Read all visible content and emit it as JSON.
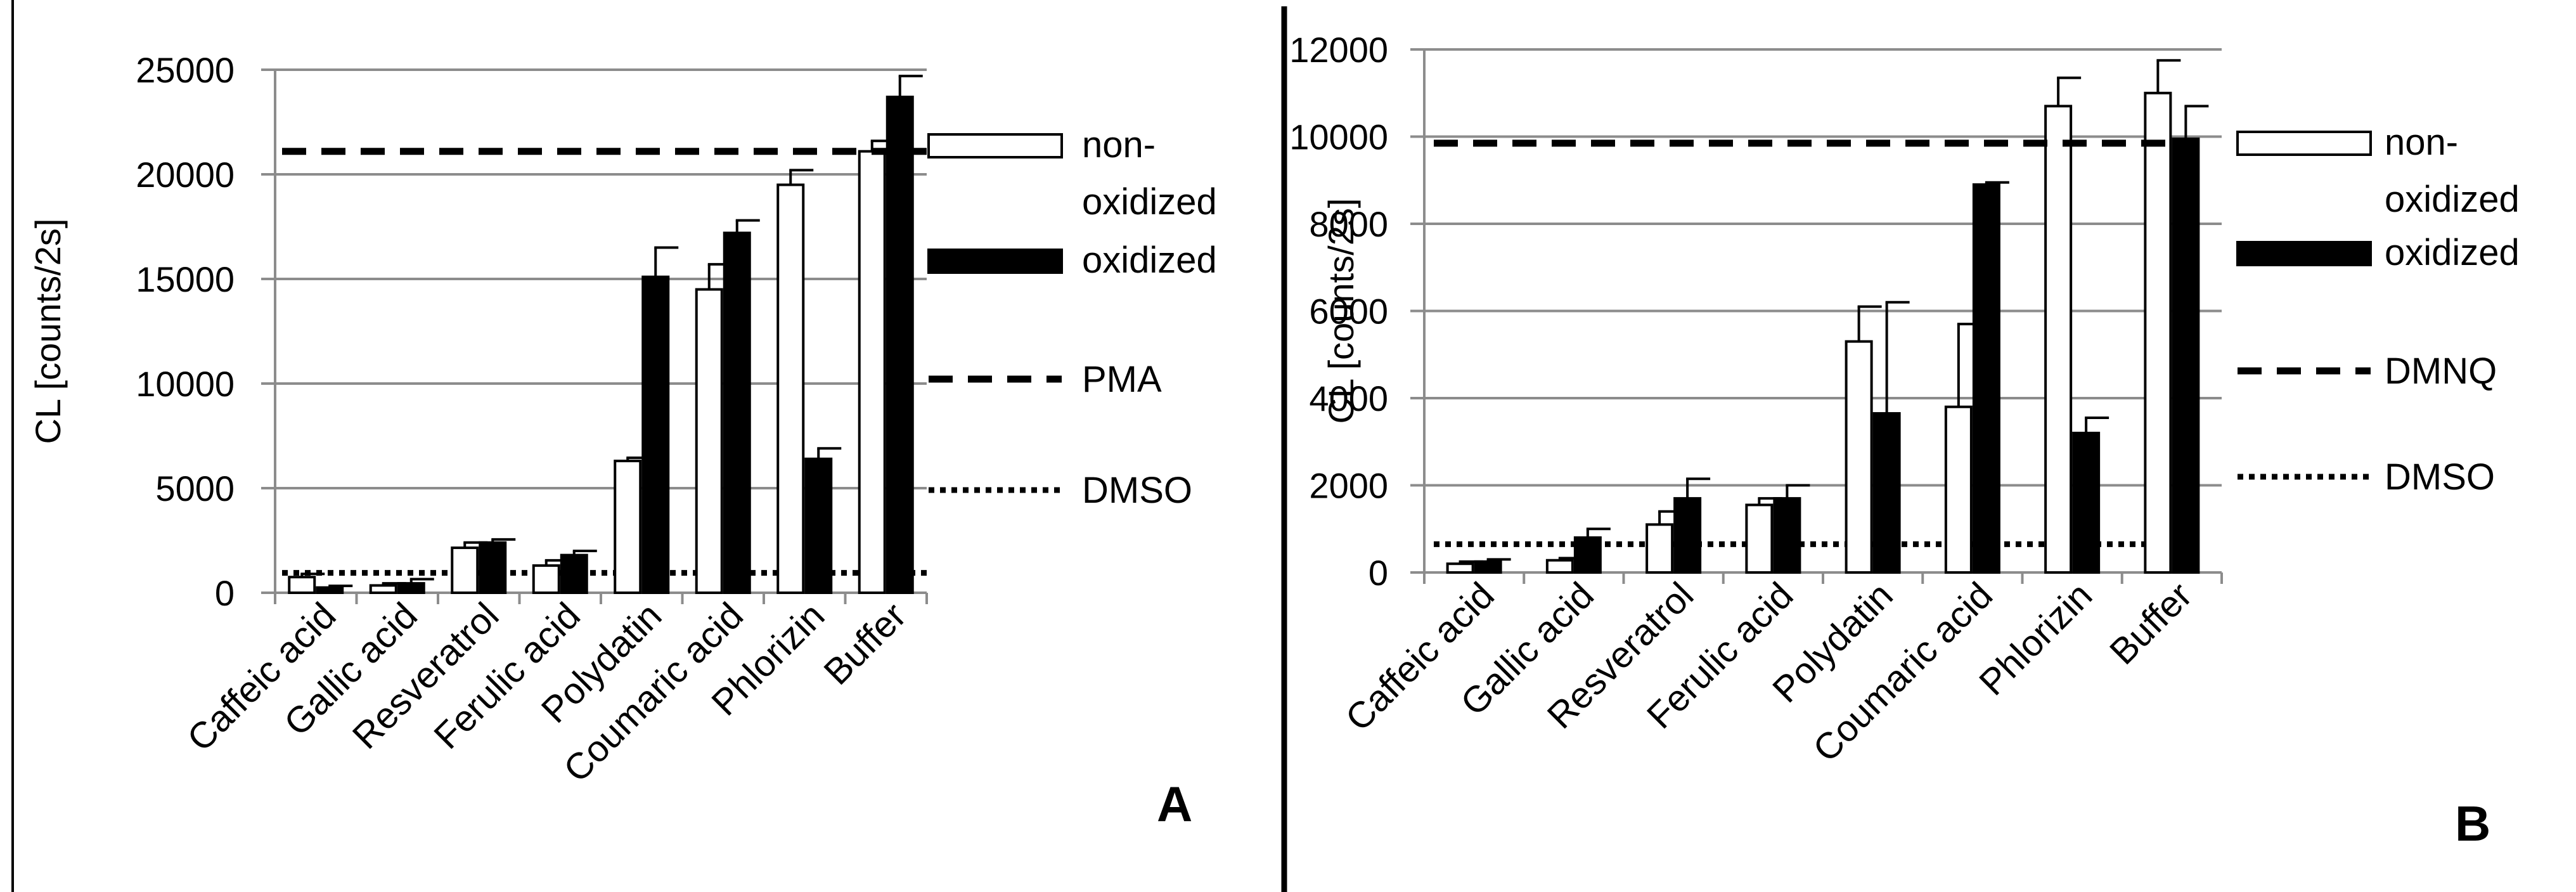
{
  "chart_data": [
    {
      "type": "bar",
      "panel_label": "A",
      "ylabel": "CL [counts/2s]",
      "ylim": [
        0,
        25000
      ],
      "yticks": [
        0,
        5000,
        10000,
        15000,
        20000,
        25000
      ],
      "grid": true,
      "categories": [
        "Caffeic acid",
        "Gallic acid",
        "Resveratrol",
        "Ferulic acid",
        "Polydatin",
        "Coumaric acid",
        "Phlorizin",
        "Buffer"
      ],
      "series": [
        {
          "name": "non-oxidized",
          "color": "#ffffff",
          "values": [
            750,
            350,
            2150,
            1300,
            6300,
            14500,
            19500,
            21100
          ],
          "errors": [
            150,
            100,
            250,
            250,
            150,
            1200,
            700,
            500
          ]
        },
        {
          "name": "oxidized",
          "color": "#000000",
          "values": [
            250,
            450,
            2400,
            1800,
            15100,
            17200,
            6400,
            23700
          ],
          "errors": [
            80,
            200,
            150,
            200,
            1400,
            600,
            500,
            1000
          ]
        }
      ],
      "reference_lines": [
        {
          "name": "PMA",
          "style": "dashed",
          "value": 21100
        },
        {
          "name": "DMSO",
          "style": "dotted",
          "value": 950
        }
      ],
      "legend": [
        "non-\noxidized",
        "oxidized",
        "PMA",
        "DMSO"
      ],
      "legend_position": "right"
    },
    {
      "type": "bar",
      "panel_label": "B",
      "ylabel": "CL [counts/2s]",
      "ylim": [
        0,
        12000
      ],
      "yticks": [
        0,
        2000,
        4000,
        6000,
        8000,
        10000,
        12000
      ],
      "grid": true,
      "categories": [
        "Caffeic acid",
        "Gallic acid",
        "Resveratrol",
        "Ferulic acid",
        "Polydatin",
        "Coumaric acid",
        "Phlorizin",
        "Buffer"
      ],
      "series": [
        {
          "name": "non-oxidized",
          "color": "#ffffff",
          "values": [
            200,
            280,
            1100,
            1550,
            5300,
            3800,
            10700,
            11000
          ],
          "errors": [
            50,
            50,
            300,
            150,
            800,
            1900,
            650,
            750
          ]
        },
        {
          "name": "oxidized",
          "color": "#000000",
          "values": [
            250,
            800,
            1700,
            1700,
            3650,
            8900,
            3200,
            9950
          ],
          "errors": [
            50,
            200,
            450,
            300,
            2550,
            50,
            350,
            750
          ]
        }
      ],
      "reference_lines": [
        {
          "name": "DMNQ",
          "style": "dashed",
          "value": 9850
        },
        {
          "name": "DMSO",
          "style": "dotted",
          "value": 650
        }
      ],
      "legend": [
        "non-\noxidized",
        "oxidized",
        "DMNQ",
        "DMSO"
      ],
      "legend_position": "right"
    }
  ]
}
